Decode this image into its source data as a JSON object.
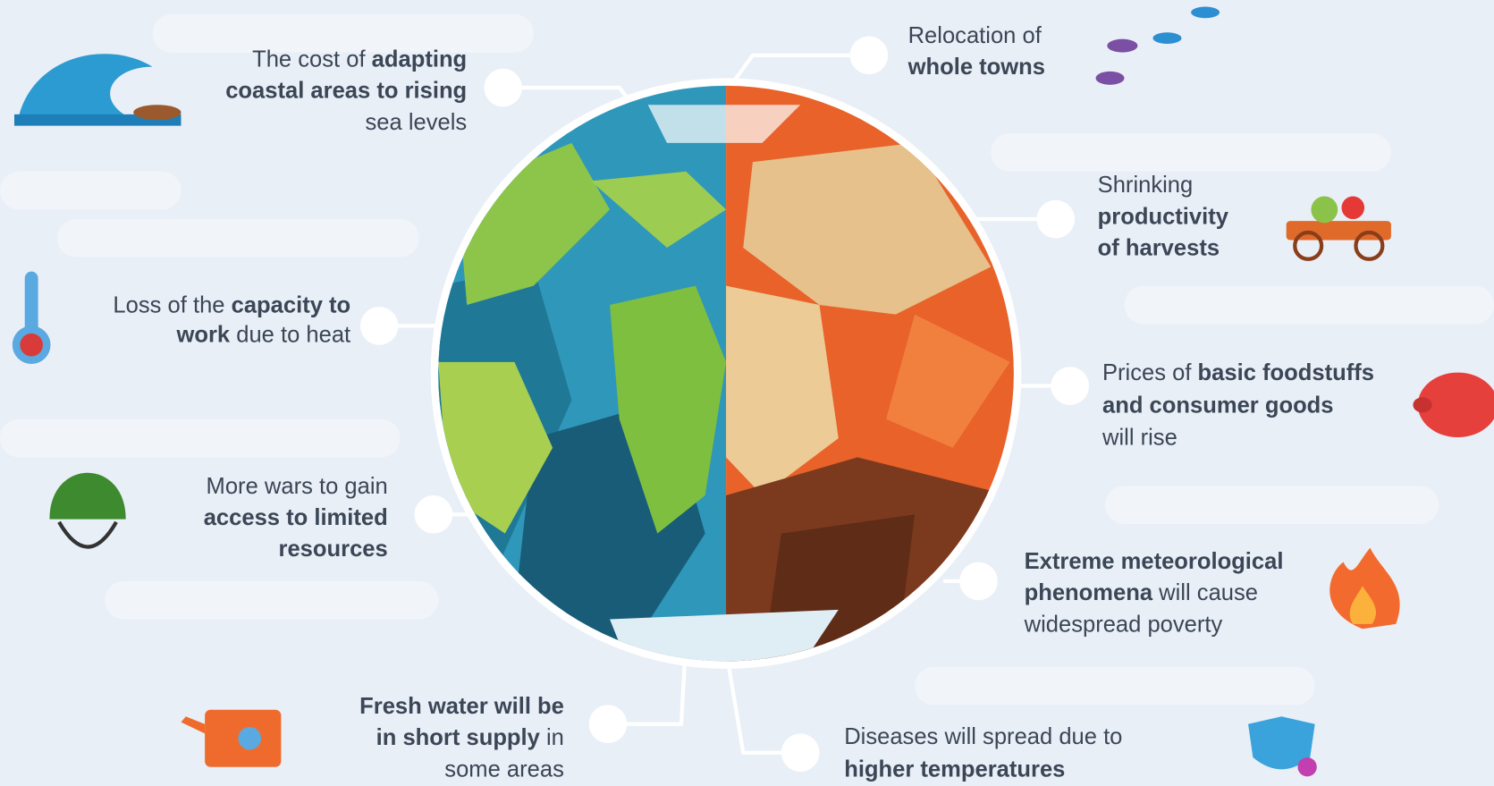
{
  "items": [
    {
      "lines": [
        [
          {
            "text": "The cost of ",
            "bold": false
          },
          {
            "text": "adapting",
            "bold": true
          }
        ],
        [
          {
            "text": "coastal areas to rising",
            "bold": true
          }
        ],
        [
          {
            "text": "sea levels",
            "bold": false
          }
        ]
      ]
    },
    {
      "lines": [
        [
          {
            "text": "Loss of the ",
            "bold": false
          },
          {
            "text": "capacity to",
            "bold": true
          }
        ],
        [
          {
            "text": "work",
            "bold": true
          },
          {
            "text": " due to heat",
            "bold": false
          }
        ]
      ]
    },
    {
      "lines": [
        [
          {
            "text": "More wars to gain",
            "bold": false
          }
        ],
        [
          {
            "text": "access to limited",
            "bold": true
          }
        ],
        [
          {
            "text": "resources",
            "bold": true
          }
        ]
      ]
    },
    {
      "lines": [
        [
          {
            "text": "Fresh water will be",
            "bold": true
          }
        ],
        [
          {
            "text": "in short supply",
            "bold": true
          },
          {
            "text": " in",
            "bold": false
          }
        ],
        [
          {
            "text": "some areas",
            "bold": false
          }
        ]
      ]
    },
    {
      "lines": [
        [
          {
            "text": "Relocation of",
            "bold": false
          }
        ],
        [
          {
            "text": "whole towns",
            "bold": true
          }
        ]
      ]
    },
    {
      "lines": [
        [
          {
            "text": "Shrinking",
            "bold": false
          }
        ],
        [
          {
            "text": "productivity",
            "bold": true
          }
        ],
        [
          {
            "text": "of harvests",
            "bold": true
          }
        ]
      ]
    },
    {
      "lines": [
        [
          {
            "text": "Prices of ",
            "bold": false
          },
          {
            "text": "basic foodstuffs",
            "bold": true
          }
        ],
        [
          {
            "text": "and consumer goods",
            "bold": true
          }
        ],
        [
          {
            "text": "will rise",
            "bold": false
          }
        ]
      ]
    },
    {
      "lines": [
        [
          {
            "text": "Extreme meteorological",
            "bold": true
          }
        ],
        [
          {
            "text": "phenomena",
            "bold": true
          },
          {
            "text": " will cause",
            "bold": false
          }
        ],
        [
          {
            "text": "widespread poverty",
            "bold": false
          }
        ]
      ]
    },
    {
      "lines": [
        [
          {
            "text": "Diseases will spread due to",
            "bold": false
          }
        ],
        [
          {
            "text": "higher temperatures",
            "bold": true
          }
        ]
      ]
    }
  ]
}
